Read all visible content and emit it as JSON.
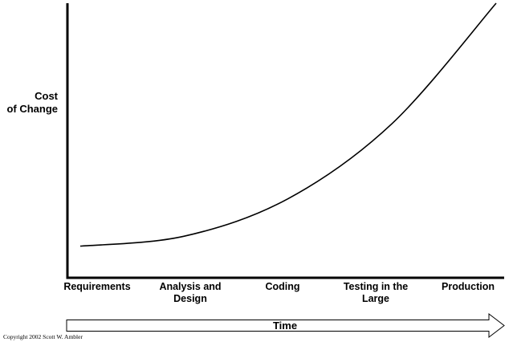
{
  "chart_data": {
    "type": "line",
    "title": "",
    "ylabel_lines": [
      "Cost",
      "of Change"
    ],
    "xlabel": "Time",
    "categories": [
      "Requirements",
      "Analysis and\nDesign",
      "Coding",
      "Testing in the\nLarge",
      "Production"
    ],
    "series": [
      {
        "values": [
          0.03,
          0.07,
          0.22,
          0.52,
          1.0
        ]
      }
    ],
    "ylim": [
      0,
      1
    ],
    "grid": false,
    "legend": "none"
  },
  "copyright": "Copyright 2002 Scott W. Ambler",
  "colors": {
    "line": "#000000",
    "background": "#ffffff",
    "arrow_fill": "#ffffff"
  }
}
